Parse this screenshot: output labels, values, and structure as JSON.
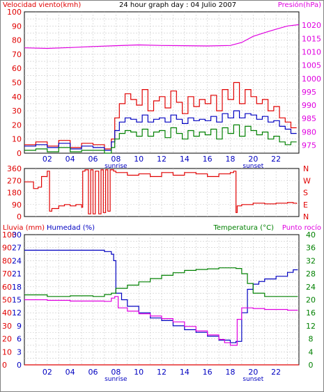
{
  "header": {
    "left_label": "Velocidad viento(kmh)",
    "title": "24 hour graph day : 04 Julio 2007",
    "right_label": "Presión(hPa)"
  },
  "chart_data": [
    {
      "type": "line",
      "name": "wind-pressure",
      "x_ticks": [
        "02",
        "04",
        "06",
        "08",
        "10",
        "12",
        "14",
        "16",
        "18",
        "20",
        "22"
      ],
      "x_extra_labels": {
        "sunrise": "sunrise",
        "sunset": "sunset"
      },
      "sunrise_hour": 8.0,
      "sunset_hour": 20.0,
      "xlim": [
        0,
        24
      ],
      "y_left": {
        "label": "Velocidad viento(kmh)",
        "ticks": [
          0,
          10,
          20,
          30,
          40,
          50,
          60,
          70,
          80,
          90,
          100
        ],
        "lim": [
          0,
          100
        ]
      },
      "y_right": {
        "label": "Presión(hPa)",
        "ticks": [
          975,
          980,
          985,
          990,
          995,
          1000,
          1005,
          1010,
          1015,
          1020
        ],
        "lim": [
          972,
          1025
        ]
      },
      "series": [
        {
          "key": "gust",
          "color": "#e00000",
          "axis": "left",
          "x": [
            0,
            1,
            2,
            3,
            4,
            5,
            6,
            7,
            7.6,
            7.9,
            8.3,
            8.8,
            9.3,
            9.8,
            10.3,
            10.8,
            11.3,
            11.8,
            12.3,
            12.8,
            13.3,
            13.8,
            14.3,
            14.8,
            15.3,
            15.8,
            16.3,
            16.8,
            17.3,
            17.8,
            18.3,
            18.8,
            19.3,
            19.8,
            20.3,
            20.8,
            21.3,
            21.8,
            22.3,
            22.8,
            23.3,
            23.8
          ],
          "y": [
            6,
            8,
            5,
            9,
            4,
            7,
            6,
            3,
            10,
            25,
            35,
            42,
            38,
            34,
            45,
            30,
            37,
            40,
            32,
            44,
            36,
            28,
            40,
            33,
            38,
            35,
            41,
            30,
            45,
            38,
            50,
            35,
            45,
            40,
            35,
            38,
            30,
            33,
            25,
            22,
            18,
            18
          ]
        },
        {
          "key": "average",
          "color": "#0000c0",
          "axis": "left",
          "x": [
            0,
            1,
            2,
            3,
            4,
            5,
            6,
            7,
            7.6,
            7.9,
            8.3,
            8.8,
            9.3,
            9.8,
            10.3,
            10.8,
            11.3,
            11.8,
            12.3,
            12.8,
            13.3,
            13.8,
            14.3,
            14.8,
            15.3,
            15.8,
            16.3,
            16.8,
            17.3,
            17.8,
            18.3,
            18.8,
            19.3,
            19.8,
            20.3,
            20.8,
            21.3,
            21.8,
            22.3,
            22.8,
            23.3,
            23.8
          ],
          "y": [
            5,
            6,
            4,
            7,
            3,
            5,
            4,
            2,
            8,
            16,
            22,
            25,
            24,
            22,
            27,
            22,
            24,
            25,
            22,
            27,
            24,
            21,
            25,
            23,
            24,
            23,
            26,
            22,
            28,
            25,
            30,
            25,
            28,
            27,
            24,
            26,
            22,
            23,
            19,
            17,
            14,
            14
          ]
        },
        {
          "key": "min",
          "color": "#008000",
          "axis": "left",
          "x": [
            0,
            1,
            2,
            3,
            4,
            5,
            6,
            7,
            7.6,
            7.9,
            8.3,
            8.8,
            9.3,
            9.8,
            10.3,
            10.8,
            11.3,
            11.8,
            12.3,
            12.8,
            13.3,
            13.8,
            14.3,
            14.8,
            15.3,
            15.8,
            16.3,
            16.8,
            17.3,
            17.8,
            18.3,
            18.8,
            19.3,
            19.8,
            20.3,
            20.8,
            21.3,
            21.8,
            22.3,
            22.8,
            23.3,
            23.8
          ],
          "y": [
            2,
            3,
            1,
            4,
            1,
            2,
            2,
            0,
            4,
            10,
            14,
            16,
            15,
            12,
            17,
            12,
            15,
            16,
            11,
            18,
            14,
            10,
            16,
            12,
            15,
            13,
            17,
            10,
            18,
            14,
            20,
            12,
            19,
            16,
            13,
            15,
            10,
            12,
            8,
            6,
            8,
            8
          ]
        },
        {
          "key": "pressure",
          "color": "#e000e0",
          "axis": "right",
          "x": [
            0,
            2,
            4,
            6,
            8,
            10,
            12,
            14,
            16,
            18,
            19,
            20,
            21,
            22,
            23,
            24
          ],
          "y": [
            1011.5,
            1011.3,
            1011.6,
            1012.0,
            1012.3,
            1012.6,
            1012.4,
            1012.3,
            1012.2,
            1012.4,
            1013.5,
            1015.8,
            1017.2,
            1018.5,
            1019.7,
            1020.2
          ]
        }
      ]
    },
    {
      "type": "line",
      "name": "wind-direction",
      "x_ticks": [
        "02",
        "04",
        "06",
        "08",
        "10",
        "12",
        "14",
        "16",
        "18",
        "20",
        "22"
      ],
      "xlim": [
        0,
        24
      ],
      "y_left": {
        "ticks": [
          0,
          90,
          180,
          270,
          360
        ],
        "lim": [
          0,
          360
        ]
      },
      "y_right": {
        "ticks": [
          "N",
          "E",
          "S",
          "W",
          "N"
        ]
      },
      "series": [
        {
          "key": "direction",
          "color": "#e00000",
          "x": [
            0,
            0.6,
            0.8,
            1.2,
            1.5,
            2.0,
            2.2,
            2.4,
            2.6,
            3.0,
            3.5,
            4.0,
            4.5,
            5.0,
            5.1,
            5.3,
            5.6,
            5.8,
            6.0,
            6.2,
            6.5,
            6.7,
            6.9,
            7.1,
            7.3,
            7.5,
            7.8,
            8.0,
            9.0,
            10.0,
            11.0,
            12.0,
            13.0,
            14.0,
            15.0,
            16.0,
            17.0,
            18.0,
            18.3,
            18.5,
            18.6,
            19.0,
            20.0,
            21.0,
            22.0,
            23.0,
            23.5,
            23.8
          ],
          "y": [
            260,
            260,
            210,
            220,
            300,
            340,
            40,
            60,
            60,
            80,
            90,
            80,
            90,
            70,
            340,
            350,
            20,
            350,
            20,
            340,
            20,
            350,
            30,
            350,
            40,
            350,
            340,
            330,
            310,
            320,
            300,
            330,
            310,
            330,
            320,
            300,
            320,
            330,
            340,
            30,
            80,
            90,
            100,
            95,
            100,
            105,
            100,
            95
          ]
        }
      ]
    },
    {
      "type": "line",
      "name": "rain-humidity-temperature",
      "labels": {
        "rain": "Lluvia (mm)",
        "humidity": "Humedad (%)",
        "temperature": "Temperatura (°C)",
        "dewpoint": "Punto rocío"
      },
      "x_ticks": [
        "02",
        "04",
        "06",
        "08",
        "10",
        "12",
        "14",
        "16",
        "18",
        "20",
        "22"
      ],
      "x_extra_labels": {
        "sunrise": "sunrise",
        "sunset": "sunset"
      },
      "sunrise_hour": 8.0,
      "sunset_hour": 20.0,
      "xlim": [
        0,
        24
      ],
      "y_rain": {
        "ticks": [
          0,
          10,
          20,
          30,
          40,
          50,
          60,
          70,
          80,
          90,
          100
        ],
        "lim": [
          0,
          100
        ]
      },
      "y_humidity": {
        "ticks": [
          0,
          3,
          6,
          9,
          12,
          15,
          18,
          21,
          24,
          27,
          30
        ],
        "lim": [
          0,
          30
        ]
      },
      "y_temp": {
        "ticks": [
          0,
          4,
          8,
          12,
          16,
          20,
          24,
          28,
          32,
          36,
          40
        ],
        "lim": [
          0,
          40
        ]
      },
      "series": [
        {
          "key": "humidity",
          "color": "#0000c0",
          "axis": "rain",
          "x": [
            0,
            2,
            4,
            6,
            7,
            7.6,
            7.8,
            8.0,
            8.5,
            9,
            10,
            11,
            12,
            13,
            14,
            15,
            16,
            17,
            18,
            18.5,
            19,
            19.5,
            20,
            20.5,
            21,
            22,
            23,
            23.5,
            23.9
          ],
          "y": [
            88,
            88,
            88,
            88,
            87,
            85,
            80,
            55,
            50,
            45,
            40,
            36,
            34,
            30,
            27,
            25,
            22,
            19,
            17,
            18,
            40,
            58,
            62,
            64,
            66,
            68,
            71,
            73,
            73
          ]
        },
        {
          "key": "temperature",
          "color": "#008000",
          "axis": "temp",
          "x": [
            0,
            2,
            4,
            6,
            7,
            7.6,
            8,
            9,
            10,
            11,
            12,
            13,
            14,
            15,
            16,
            17,
            18,
            18.5,
            19,
            19.5,
            20,
            21,
            22,
            23,
            23.9
          ],
          "y": [
            21.5,
            21,
            21.2,
            21,
            21.6,
            22,
            23.5,
            24.5,
            25.5,
            26.5,
            27.5,
            28.3,
            29,
            29.3,
            29.5,
            29.8,
            29.8,
            29.6,
            28,
            25,
            22,
            21,
            21,
            21,
            21
          ]
        },
        {
          "key": "dewpoint",
          "color": "#e000e0",
          "axis": "temp",
          "x": [
            0,
            2,
            4,
            6,
            7,
            7.6,
            7.9,
            8.2,
            9,
            10,
            11,
            12,
            13,
            14,
            15,
            16,
            17,
            17.5,
            18,
            18.4,
            18.6,
            19,
            20,
            21,
            22,
            23,
            23.9
          ],
          "y": [
            20,
            19.8,
            19.6,
            19.6,
            19.5,
            20.5,
            21,
            17.5,
            16.5,
            15.7,
            15,
            14.2,
            13.2,
            11.8,
            10.4,
            9.2,
            7.8,
            6.8,
            6,
            6,
            14,
            17.5,
            17.3,
            17,
            17,
            16.8,
            16.8
          ]
        },
        {
          "key": "rain",
          "color": "#e00000",
          "axis": "rain",
          "x": [
            0,
            24
          ],
          "y": [
            0,
            0
          ]
        }
      ]
    }
  ],
  "colors": {
    "grid": "#c8c8c8",
    "axis": "#000000",
    "label_red": "#e00000",
    "label_blue": "#0000c0",
    "label_green": "#008000",
    "label_magenta": "#e000e0"
  }
}
